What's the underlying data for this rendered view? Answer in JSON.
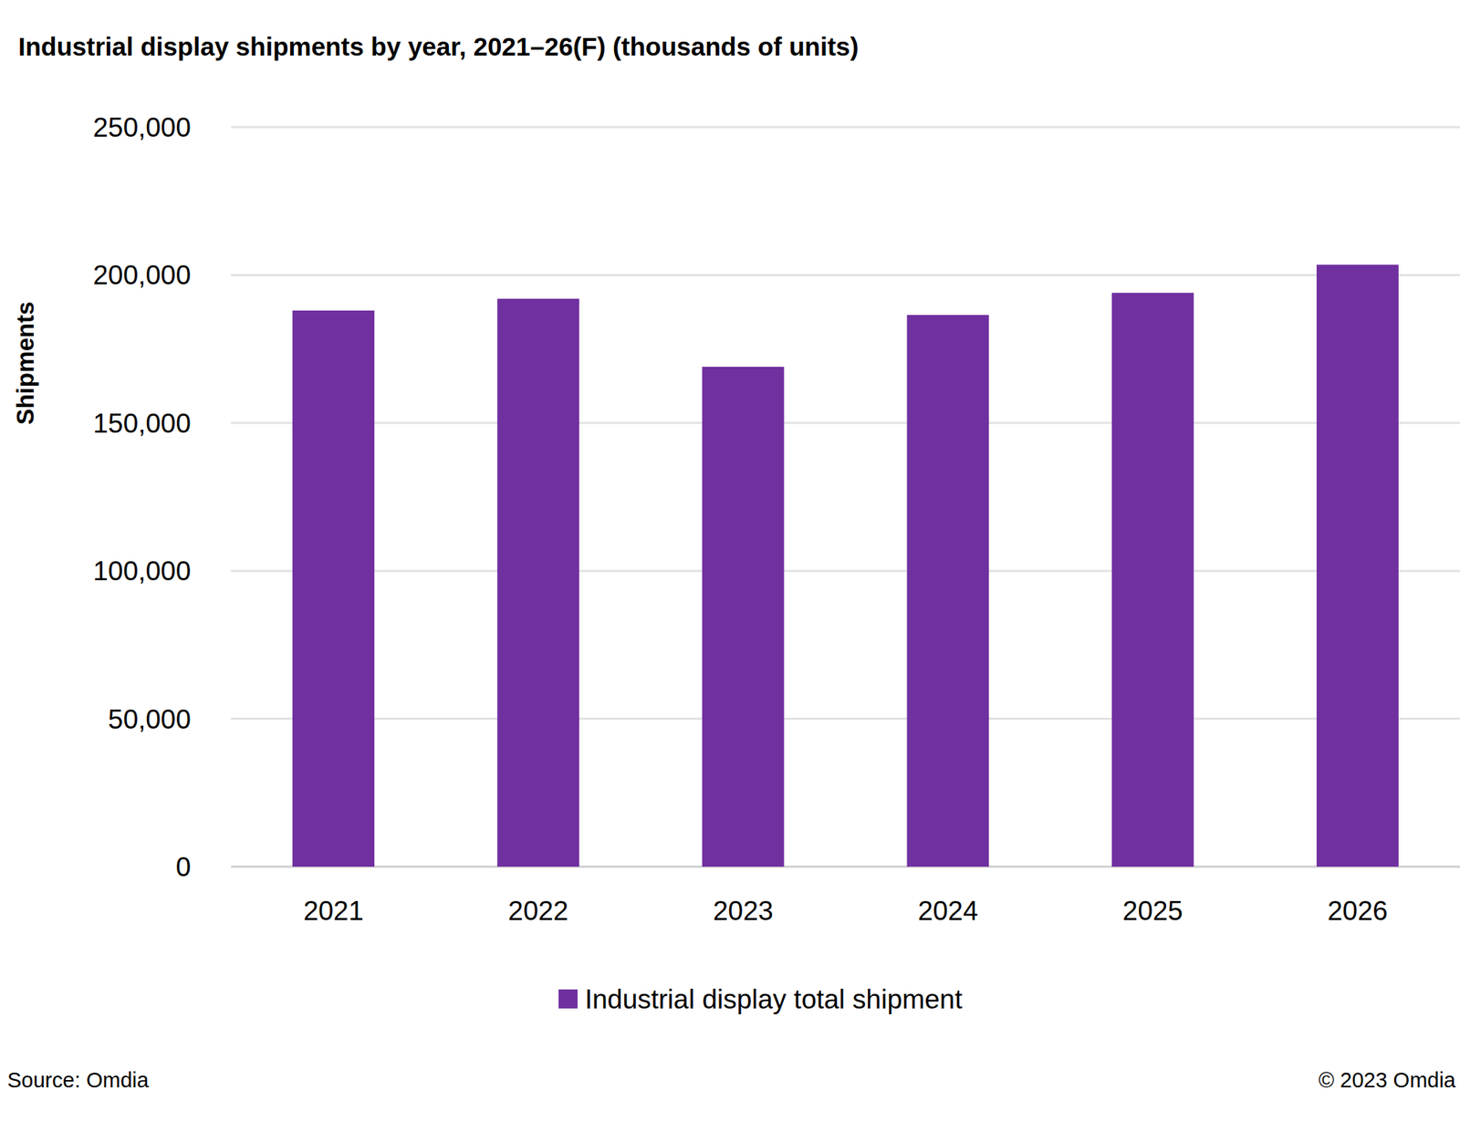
{
  "chart_data": {
    "type": "bar",
    "title": "Industrial display shipments by year, 2021–26(F) (thousands of units)",
    "y_label": "Shipments",
    "categories": [
      "2021",
      "2022",
      "2023",
      "2024",
      "2025",
      "2026"
    ],
    "series": [
      {
        "name": "Industrial display total shipment",
        "color": "#7030a0",
        "values": [
          188000,
          192000,
          169000,
          186500,
          194000,
          203500
        ]
      }
    ],
    "ylim": [
      0,
      250000
    ],
    "yticks": [
      0,
      {
        "value": 50000,
        "label": "50,000"
      },
      {
        "value": 100000,
        "label": "100,000"
      },
      {
        "value": 150000,
        "label": "150,000"
      },
      {
        "value": 200000,
        "label": "200,000"
      },
      {
        "value": 250000,
        "label": "250,000"
      }
    ],
    "grid": true,
    "legend": "bottom",
    "source": "Source: Omdia",
    "copyright": "© 2023 Omdia"
  }
}
